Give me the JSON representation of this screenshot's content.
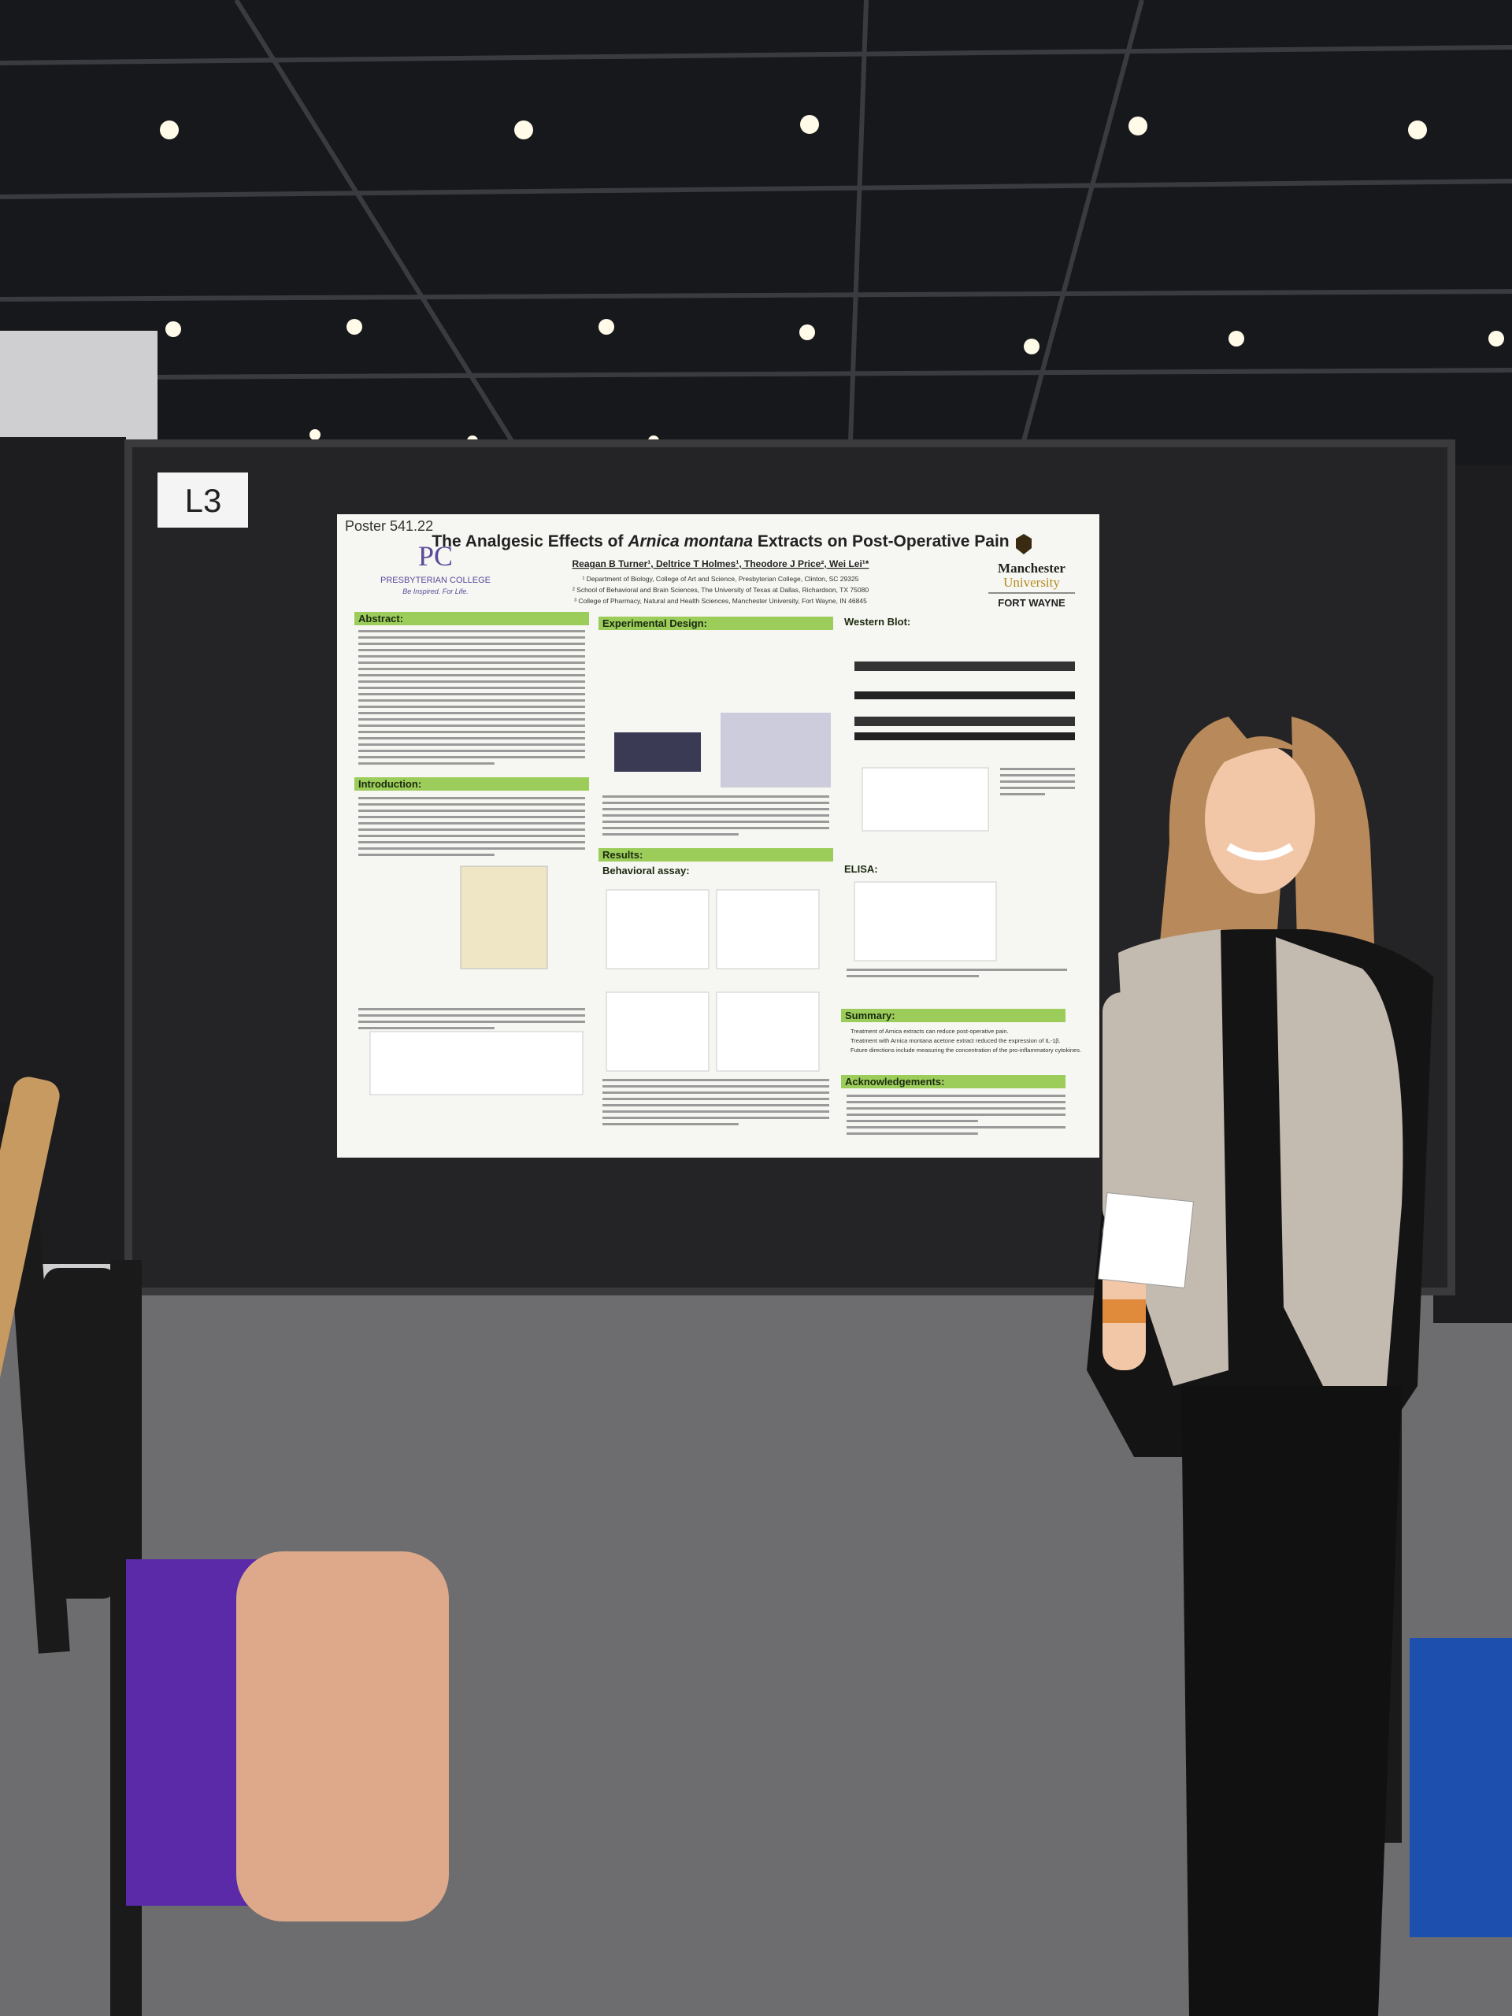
{
  "board_label": "L3",
  "poster": {
    "number": "Poster 541.22",
    "title": {
      "before": "The Analgesic Effects of ",
      "italic": "Arnica montana",
      "after": " Extracts on Post-Operative Pain"
    },
    "authors": "Reagan B Turner¹, Deltrice T Holmes¹, Theodore J Price², Wei Lei¹*",
    "affiliations": [
      "¹ Department of Biology, College of Art and Science, Presbyterian College, Clinton, SC 29325",
      "² School of Behavioral and Brain Sciences, The University of Texas at Dallas, Richardson, TX 75080",
      "³ College of Pharmacy, Natural and Health Sciences, Manchester University, Fort Wayne, IN 46845"
    ],
    "left_logo": {
      "name": "PRESBYTERIAN COLLEGE",
      "tagline": "Be Inspired. For Life."
    },
    "right_logo": {
      "name": "Manchester",
      "name2": "University",
      "campus": "FORT WAYNE"
    },
    "sections": {
      "abstract": "Abstract:",
      "introduction": "Introduction:",
      "design": "Experimental Design:",
      "results": "Results:",
      "behavioral": "Behavioral assay:",
      "western": "Western Blot:",
      "elisa": "ELISA:",
      "summary": "Summary:",
      "acknowledgements": "Acknowledgements:"
    },
    "summary_points": [
      "Treatment of Arnica extracts can reduce post-operative pain.",
      "Treatment with Arnica montana acetone extract reduced the expression of IL-1β.",
      "Future directions include measuring the concentration of the pro-inflammatory cytokines."
    ]
  }
}
